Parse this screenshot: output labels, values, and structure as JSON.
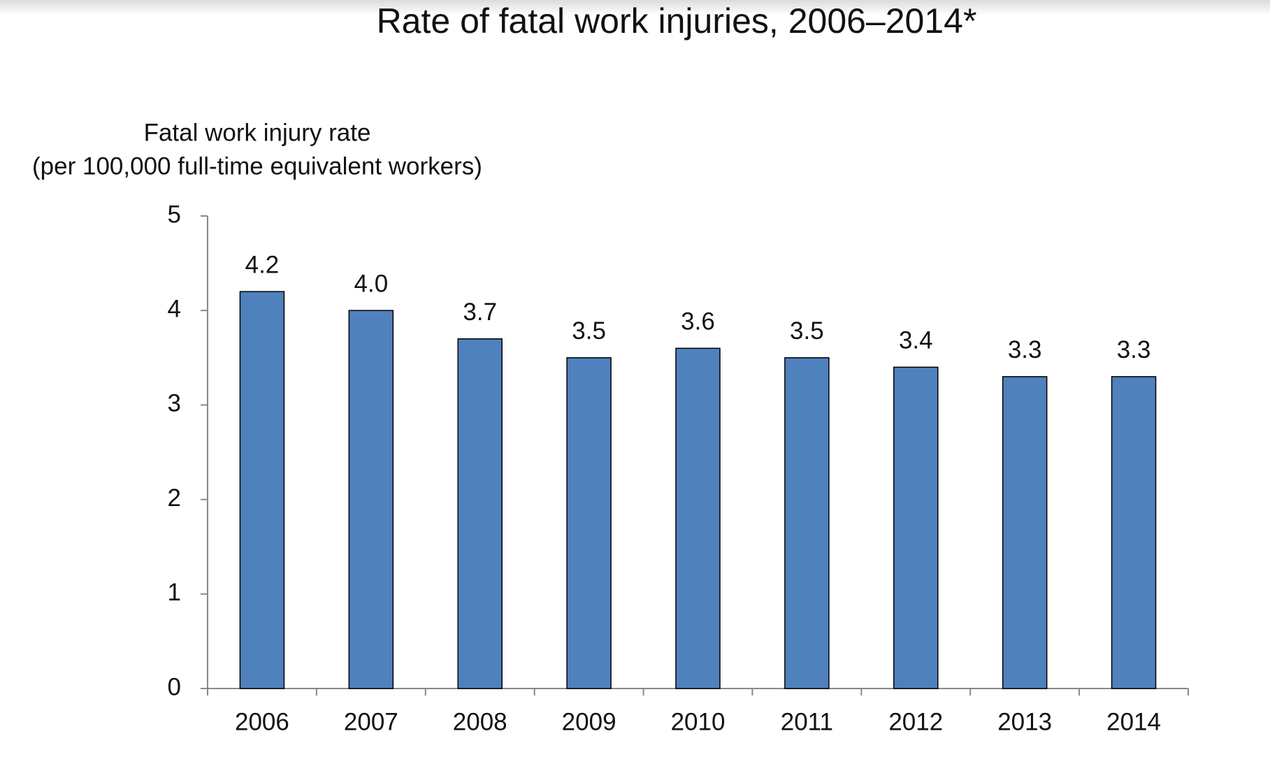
{
  "chart_data": {
    "type": "bar",
    "title": "Rate of fatal work injuries, 2006–2014*",
    "y_label": [
      "Fatal work injury rate",
      "(per 100,000 full-time equivalent workers)"
    ],
    "categories": [
      "2006",
      "2007",
      "2008",
      "2009",
      "2010",
      "2011",
      "2012",
      "2013",
      "2014"
    ],
    "values": [
      4.2,
      4.0,
      3.7,
      3.5,
      3.6,
      3.5,
      3.4,
      3.3,
      3.3
    ],
    "value_labels": [
      "4.2",
      "4.0",
      "3.7",
      "3.5",
      "3.6",
      "3.5",
      "3.4",
      "3.3",
      "3.3"
    ],
    "color": "#4f81bd",
    "ylim": [
      0,
      5
    ],
    "yticks": [
      0,
      1,
      2,
      3,
      4,
      5
    ],
    "grid": false
  }
}
